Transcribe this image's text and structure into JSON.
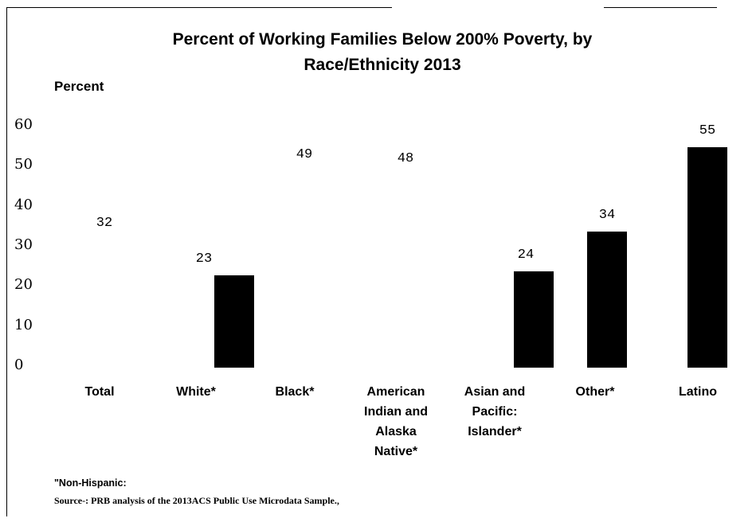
{
  "chart_data": {
    "type": "bar",
    "title_line1": "Percent of Working Families Below 200% Poverty, by",
    "title_line2": "Race/Ethnicity 2013",
    "ylabel": "Percent",
    "xlabel": "",
    "ylim": [
      0,
      60
    ],
    "yticks": [
      "0",
      "10",
      "20",
      "30",
      "40",
      "50",
      "60"
    ],
    "categories": [
      "Total",
      "White*",
      "Black*",
      "American\nIndian and\nAlaska\nNative*",
      "Asian and\nPacific:\nIslander*",
      "Other*",
      "Latino"
    ],
    "values": [
      32,
      23,
      49,
      48,
      24,
      34,
      55
    ],
    "value_labels": [
      "32",
      "23",
      "49",
      "48",
      "24",
      "34",
      "55"
    ],
    "bar_drawn": [
      false,
      true,
      false,
      false,
      true,
      true,
      true
    ],
    "bar_color": "#000000",
    "grid": false,
    "legend": "none"
  },
  "footnotes": {
    "note": "\"Non-Hispanic:",
    "source": "Source-: PRB analysis of the 2013ACS Public Use Microdata Sample.,"
  }
}
